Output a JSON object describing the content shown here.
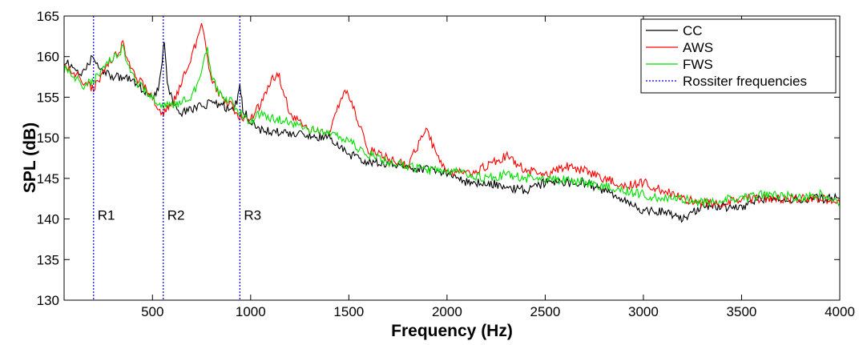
{
  "chart_data": {
    "type": "line",
    "xlabel": "Frequency (Hz)",
    "ylabel": "SPL (dB)",
    "xlim": [
      50,
      4000
    ],
    "ylim": [
      130,
      165
    ],
    "xticks": [
      500,
      1000,
      1500,
      2000,
      2500,
      3000,
      3500,
      4000
    ],
    "yticks": [
      130,
      135,
      140,
      145,
      150,
      155,
      160,
      165
    ],
    "grid": false,
    "legend_position": "top-right",
    "series": [
      {
        "name": "CC",
        "color": "#000000",
        "x": [
          50,
          100,
          150,
          200,
          250,
          300,
          350,
          400,
          450,
          500,
          530,
          550,
          560,
          575,
          600,
          650,
          700,
          750,
          800,
          850,
          900,
          930,
          945,
          960,
          1000,
          1050,
          1100,
          1200,
          1300,
          1400,
          1500,
          1600,
          1700,
          1800,
          1900,
          2000,
          2100,
          2200,
          2300,
          2400,
          2500,
          2600,
          2700,
          2800,
          2900,
          3000,
          3100,
          3200,
          3300,
          3400,
          3500,
          3600,
          3700,
          3800,
          3900,
          4000
        ],
        "y": [
          159.5,
          158.5,
          158,
          160.2,
          158,
          157.5,
          157.5,
          157,
          156,
          155,
          156,
          159.5,
          162,
          157,
          154.5,
          153,
          153.5,
          154,
          154.2,
          154,
          153.5,
          154.5,
          156.5,
          153.5,
          152,
          151,
          150.8,
          150.5,
          150.2,
          150,
          148,
          147,
          146.8,
          146.5,
          146,
          145.8,
          144.5,
          144.5,
          144,
          143.5,
          144.5,
          144.5,
          144.5,
          143.5,
          142.5,
          141,
          141,
          140,
          141.5,
          141.5,
          141.5,
          142.5,
          142.5,
          142.5,
          142.5,
          142.5
        ]
      },
      {
        "name": "AWS",
        "color": "#ff0000",
        "x": [
          50,
          100,
          150,
          200,
          250,
          300,
          350,
          400,
          450,
          500,
          550,
          600,
          650,
          700,
          750,
          800,
          850,
          900,
          950,
          1000,
          1050,
          1100,
          1140,
          1200,
          1300,
          1400,
          1480,
          1550,
          1600,
          1700,
          1800,
          1850,
          1900,
          1950,
          2000,
          2100,
          2200,
          2300,
          2400,
          2500,
          2600,
          2700,
          2800,
          2900,
          3000,
          3100,
          3200,
          3300,
          3400,
          3500,
          3600,
          3700,
          3800,
          3900,
          4000
        ],
        "y": [
          158.5,
          158,
          157,
          156,
          158,
          160,
          161.5,
          158,
          156.5,
          155,
          153,
          154,
          157,
          160,
          164,
          157,
          155,
          154,
          152.5,
          152.5,
          154,
          157,
          158,
          153,
          151,
          150.5,
          156,
          152,
          148.5,
          147.5,
          146.5,
          149,
          151,
          147.5,
          146,
          145.5,
          146.5,
          147.8,
          146,
          145.5,
          146.5,
          146,
          145,
          144,
          144.5,
          143.5,
          142.5,
          142,
          142,
          142.5,
          142.5,
          142.5,
          142.5,
          142.5,
          142
        ]
      },
      {
        "name": "FWS",
        "color": "#00e000",
        "x": [
          50,
          100,
          150,
          200,
          250,
          300,
          350,
          400,
          450,
          500,
          550,
          600,
          650,
          700,
          750,
          780,
          800,
          850,
          900,
          950,
          1000,
          1050,
          1100,
          1200,
          1300,
          1400,
          1500,
          1600,
          1700,
          1800,
          1900,
          2000,
          2100,
          2200,
          2300,
          2400,
          2500,
          2600,
          2700,
          2800,
          2900,
          3000,
          3100,
          3200,
          3300,
          3400,
          3500,
          3600,
          3700,
          3800,
          3900,
          4000
        ],
        "y": [
          158.5,
          157.5,
          156.5,
          157,
          158.5,
          160,
          161,
          157.5,
          156,
          155,
          154,
          154,
          154.5,
          155,
          158,
          161,
          157.5,
          155,
          154.5,
          153,
          152,
          153,
          152.5,
          152,
          151,
          150.5,
          149.5,
          148,
          147,
          146.5,
          146,
          146,
          145.5,
          145,
          145.5,
          145,
          145,
          144.8,
          144.5,
          144,
          143.5,
          143,
          142.5,
          142.5,
          142,
          142.5,
          142.5,
          143,
          143,
          142.5,
          143,
          142
        ]
      },
      {
        "name": "Rossiter frequencies",
        "color": "#0000cc",
        "style": "dotted",
        "x": [
          200,
          555,
          945
        ]
      }
    ],
    "annotations": [
      {
        "text": "R1",
        "x": 200,
        "y": 140.5
      },
      {
        "text": "R2",
        "x": 555,
        "y": 140.5
      },
      {
        "text": "R3",
        "x": 945,
        "y": 140.5
      }
    ]
  }
}
